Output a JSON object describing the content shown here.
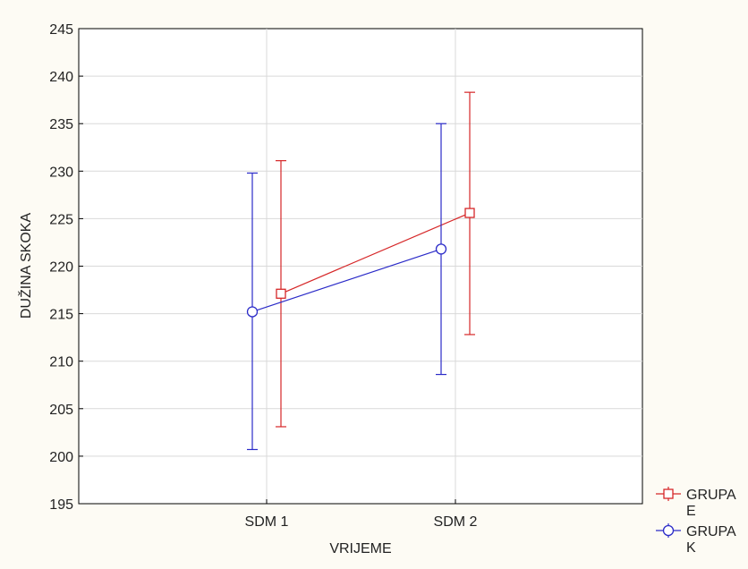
{
  "chart_data": {
    "type": "line",
    "title": "",
    "xlabel": "VRIJEME",
    "ylabel": "DUŽINA SKOKA",
    "categories": [
      "SDM 1",
      "SDM 2"
    ],
    "ylim": [
      195,
      245
    ],
    "yticks": [
      195,
      200,
      205,
      210,
      215,
      220,
      225,
      230,
      235,
      240,
      245
    ],
    "grid": true,
    "legend_position": "bottom-right",
    "series": [
      {
        "name": "GRUPA E",
        "marker": "square",
        "color": "#d62728",
        "values": [
          217.1,
          225.6
        ],
        "lower": [
          203.1,
          212.8
        ],
        "upper": [
          231.1,
          238.3
        ]
      },
      {
        "name": "GRUPA K",
        "marker": "circle",
        "color": "#2b2bc8",
        "values": [
          215.2,
          221.8
        ],
        "lower": [
          200.7,
          208.6
        ],
        "upper": [
          229.8,
          235.0
        ]
      }
    ]
  }
}
